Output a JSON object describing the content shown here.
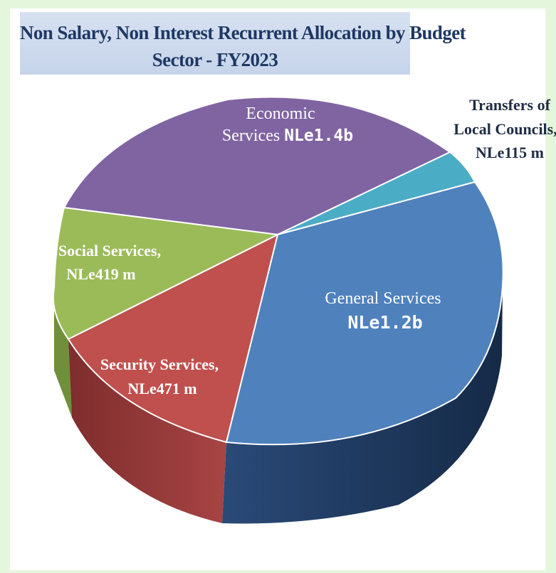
{
  "chart_data": {
    "type": "pie",
    "title_lines": [
      "Non Salary, Non Interest Recurrent Allocation by Budget",
      "Sector - FY2023"
    ],
    "slices": [
      {
        "label": "Economic Services",
        "value_label": "NLe1.4b",
        "value": 1400,
        "color": "#8064a2",
        "side": "#5f4a7a"
      },
      {
        "label": "Transfers of Local Councils",
        "value_label": "NLe115 m",
        "value": 115,
        "color": "#4bacc6",
        "side": "#32808f"
      },
      {
        "label": "General Services",
        "value_label": "NLe1.2b",
        "value": 1200,
        "color": "#4f81bd",
        "side": "#1f3a5f"
      },
      {
        "label": "Security Services",
        "value_label": "NLe471 m",
        "value": 471,
        "color": "#c0504d",
        "side": "#8e3433"
      },
      {
        "label": "Social Services",
        "value_label": "NLe419 m",
        "value": 419,
        "color": "#9bbb59",
        "side": "#6c8a38"
      }
    ],
    "unit": "NLe",
    "three_d": true,
    "legend": "none"
  }
}
